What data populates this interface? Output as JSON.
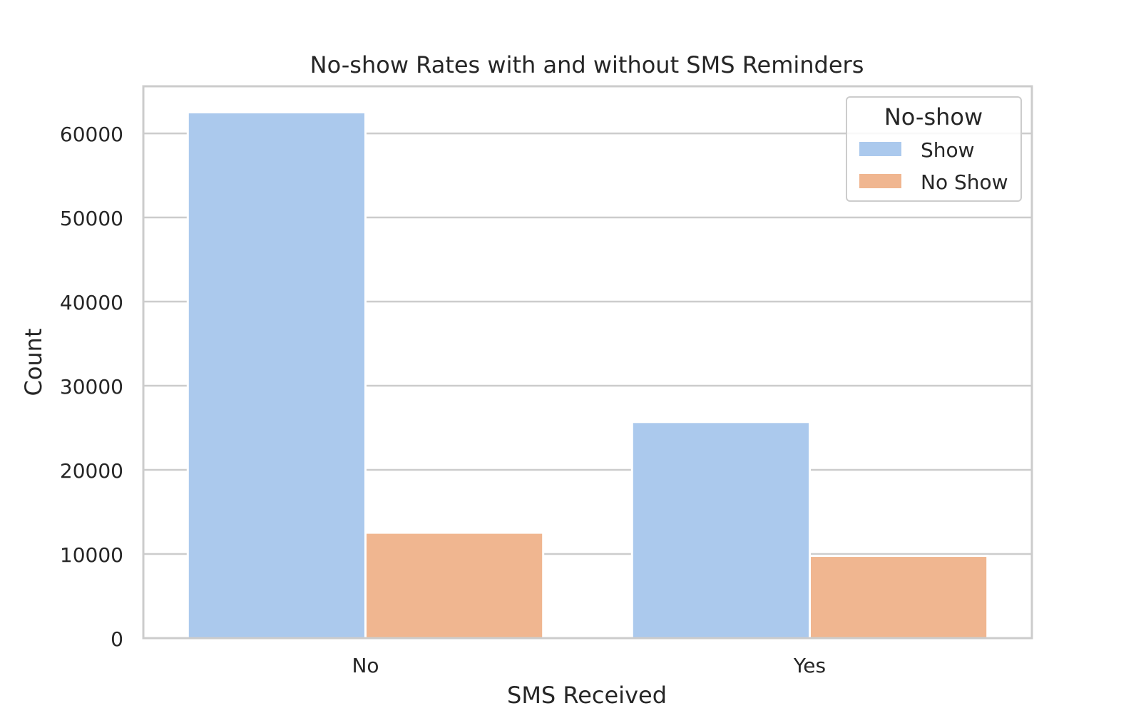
{
  "chart_data": {
    "type": "bar",
    "title": "No-show Rates with and without SMS Reminders",
    "xlabel": "SMS Received",
    "ylabel": "Count",
    "categories": [
      "No",
      "Yes"
    ],
    "series": [
      {
        "name": "Show",
        "values": [
          62510,
          25698
        ],
        "color": "#abc9ed"
      },
      {
        "name": "No Show",
        "values": [
          12535,
          9784
        ],
        "color": "#f0b690"
      }
    ],
    "ylim": [
      0,
      65600
    ],
    "yticks": [
      0,
      10000,
      20000,
      30000,
      40000,
      50000,
      60000
    ],
    "grid": true,
    "legend": {
      "title": "No-show",
      "position": "top-right"
    }
  }
}
